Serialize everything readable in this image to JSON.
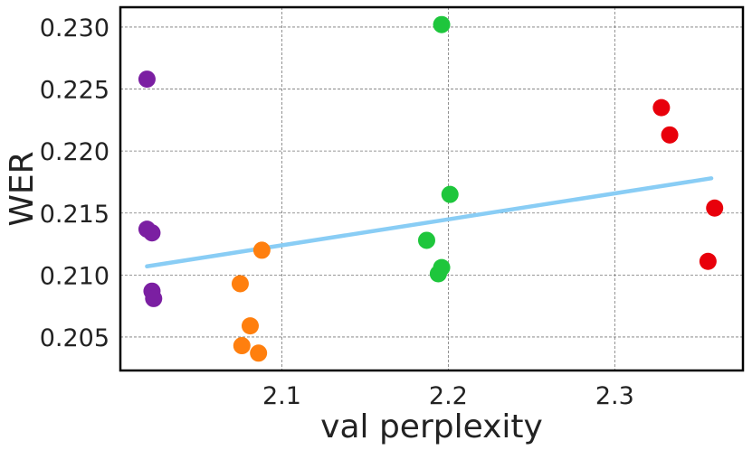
{
  "chart_data": {
    "type": "scatter",
    "title": "",
    "xlabel": "val perplexity",
    "ylabel": "WER",
    "xlim": [
      2.003,
      2.377
    ],
    "ylim": [
      0.2023,
      0.2316
    ],
    "x_ticks": [
      2.1,
      2.2,
      2.3
    ],
    "x_tick_labels": [
      "2.1",
      "2.2",
      "2.3"
    ],
    "y_ticks": [
      0.205,
      0.21,
      0.215,
      0.22,
      0.225,
      0.23
    ],
    "y_tick_labels": [
      "0.205",
      "0.210",
      "0.215",
      "0.220",
      "0.225",
      "0.230"
    ],
    "grid": true,
    "series": [
      {
        "name": "purple",
        "color": "#7b1fa2",
        "points": [
          [
            2.019,
            0.2258
          ],
          [
            2.019,
            0.2137
          ],
          [
            2.022,
            0.2134
          ],
          [
            2.022,
            0.2087
          ],
          [
            2.023,
            0.2081
          ]
        ]
      },
      {
        "name": "orange",
        "color": "#ff7f0e",
        "points": [
          [
            2.088,
            0.212
          ],
          [
            2.075,
            0.2093
          ],
          [
            2.081,
            0.2059
          ],
          [
            2.076,
            0.2043
          ],
          [
            2.086,
            0.2037
          ]
        ]
      },
      {
        "name": "green",
        "color": "#1ec63c",
        "points": [
          [
            2.196,
            0.2302
          ],
          [
            2.201,
            0.2165
          ],
          [
            2.187,
            0.2128
          ],
          [
            2.196,
            0.2106
          ],
          [
            2.194,
            0.2101
          ]
        ]
      },
      {
        "name": "red",
        "color": "#e8000b",
        "points": [
          [
            2.328,
            0.2235
          ],
          [
            2.333,
            0.2213
          ],
          [
            2.36,
            0.2154
          ],
          [
            2.356,
            0.2111
          ]
        ]
      }
    ],
    "trendline": {
      "color": "#89cdf5",
      "points": [
        [
          2.019,
          0.2107
        ],
        [
          2.358,
          0.2178
        ]
      ]
    }
  }
}
